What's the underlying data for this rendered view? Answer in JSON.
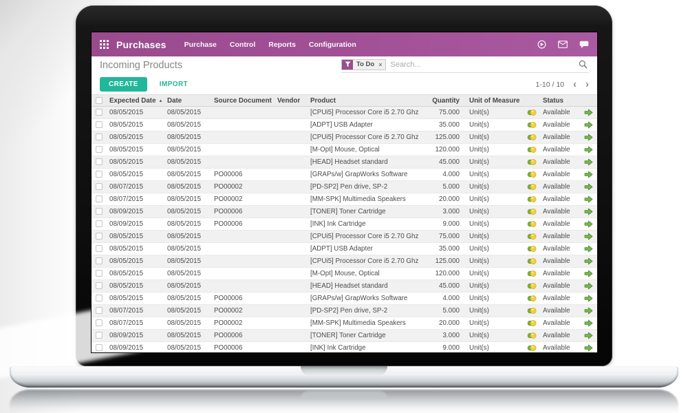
{
  "navbar": {
    "app_name": "Purchases",
    "menus": [
      "Purchase",
      "Control",
      "Reports",
      "Configuration"
    ],
    "right_icons": [
      "forward-circle-icon",
      "envelope-icon",
      "chat-bubble-icon"
    ]
  },
  "control_panel": {
    "title": "Incoming Products",
    "filter_tag": "To Do",
    "filter_remove_glyph": "×",
    "search_placeholder": "Search...",
    "create_label": "CREATE",
    "import_label": "IMPORT",
    "pager_text": "1-10 / 10",
    "pager_prev_glyph": "‹",
    "pager_next_glyph": "›"
  },
  "table": {
    "columns": [
      "Expected Date",
      "Date",
      "Source Document",
      "Vendor",
      "Product",
      "Quantity",
      "Unit of Measure",
      "Status"
    ],
    "sort_column": "Expected Date",
    "sort_asc_glyph": "▲",
    "row_repeat": 2,
    "rows": [
      {
        "expected_date": "08/05/2015",
        "date": "08/05/2015",
        "source_document": "",
        "vendor": "",
        "product": "[CPUi5] Processor Core i5 2.70 Ghz",
        "quantity": "75.000",
        "uom": "Unit(s)",
        "status": "Available"
      },
      {
        "expected_date": "08/05/2015",
        "date": "08/05/2015",
        "source_document": "",
        "vendor": "",
        "product": "[ADPT] USB Adapter",
        "quantity": "35.000",
        "uom": "Unit(s)",
        "status": "Available"
      },
      {
        "expected_date": "08/05/2015",
        "date": "08/05/2015",
        "source_document": "",
        "vendor": "",
        "product": "[CPUi5] Processor Core i5 2.70 Ghz",
        "quantity": "125.000",
        "uom": "Unit(s)",
        "status": "Available"
      },
      {
        "expected_date": "08/05/2015",
        "date": "08/05/2015",
        "source_document": "",
        "vendor": "",
        "product": "[M-Opt] Mouse, Optical",
        "quantity": "120.000",
        "uom": "Unit(s)",
        "status": "Available"
      },
      {
        "expected_date": "08/05/2015",
        "date": "08/05/2015",
        "source_document": "",
        "vendor": "",
        "product": "[HEAD] Headset standard",
        "quantity": "45.000",
        "uom": "Unit(s)",
        "status": "Available"
      },
      {
        "expected_date": "08/05/2015",
        "date": "08/05/2015",
        "source_document": "PO00006",
        "vendor": "",
        "product": "[GRAPs/w] GrapWorks Software",
        "quantity": "4.000",
        "uom": "Unit(s)",
        "status": "Available"
      },
      {
        "expected_date": "08/07/2015",
        "date": "08/05/2015",
        "source_document": "PO00002",
        "vendor": "",
        "product": "[PD-SP2] Pen drive, SP-2",
        "quantity": "5.000",
        "uom": "Unit(s)",
        "status": "Available"
      },
      {
        "expected_date": "08/07/2015",
        "date": "08/05/2015",
        "source_document": "PO00002",
        "vendor": "",
        "product": "[MM-SPK] Multimedia Speakers",
        "quantity": "20.000",
        "uom": "Unit(s)",
        "status": "Available"
      },
      {
        "expected_date": "08/09/2015",
        "date": "08/05/2015",
        "source_document": "PO00006",
        "vendor": "",
        "product": "[TONER] Toner Cartridge",
        "quantity": "3.000",
        "uom": "Unit(s)",
        "status": "Available"
      },
      {
        "expected_date": "08/09/2015",
        "date": "08/05/2015",
        "source_document": "PO00006",
        "vendor": "",
        "product": "[INK] Ink Cartridge",
        "quantity": "9.000",
        "uom": "Unit(s)",
        "status": "Available"
      }
    ]
  },
  "colors": {
    "navbar_purple": "#a25197",
    "accent_teal": "#21b799",
    "row_alt_gray": "#f1f1f1",
    "status_ball_yellow": "#f0d23c",
    "status_ball_green": "#7fae3e",
    "process_arrow_green": "#76b84e"
  }
}
